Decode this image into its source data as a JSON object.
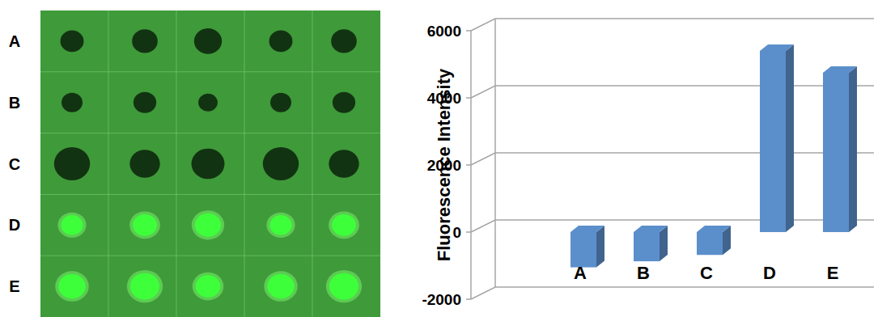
{
  "image_panel": {
    "rows": [
      "A",
      "B",
      "C",
      "D",
      "E"
    ]
  },
  "chart_data": {
    "type": "bar",
    "y_label": "Fluorescence Intensity",
    "categories": [
      "A",
      "B",
      "C",
      "D",
      "E"
    ],
    "values": [
      -1050,
      -870,
      -680,
      5400,
      4750
    ],
    "color": "#5b8fcb",
    "ylim": [
      -2000,
      6000
    ],
    "yticks": [
      -2000,
      0,
      2000,
      4000,
      6000
    ],
    "grid": true
  }
}
